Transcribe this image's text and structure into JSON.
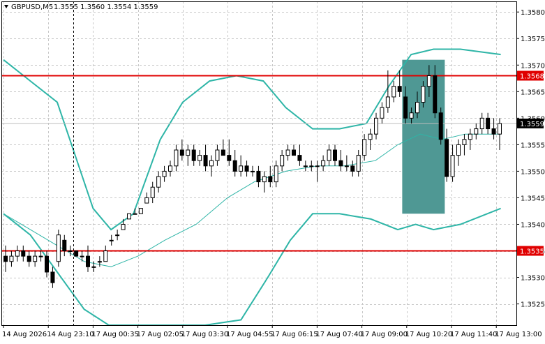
{
  "header": {
    "symbol": "GBPUSD,M5",
    "ohlc": "1.3555 1.3560 1.3554 1.3559"
  },
  "colors": {
    "background": "#ffffff",
    "grid": "#c8c8c8",
    "axis": "#000000",
    "bollinger": "#2eb5a7",
    "candle": "#000000",
    "level_line": "#e00000",
    "zone_fill": "#4f9894",
    "current_price_label_bg": "#000000",
    "level_label_bg": "#e00000"
  },
  "chart_data": {
    "type": "candlestick",
    "symbol": "GBPUSD",
    "timeframe": "M5",
    "y_ticks": [
      1.358,
      1.3575,
      1.357,
      1.3565,
      1.356,
      1.3555,
      1.355,
      1.3545,
      1.354,
      1.3535,
      1.353,
      1.3525
    ],
    "x_tick_labels": [
      "14 Aug 2026",
      "14 Aug 23:10",
      "17 Aug 00:35",
      "17 Aug 02:05",
      "17 Aug 03:30",
      "17 Aug 04:55",
      "17 Aug 06:15",
      "17 Aug 07:40",
      "17 Aug 09:00",
      "17 Aug 10:20",
      "17 Aug 11:40",
      "17 Aug 13:00"
    ],
    "ylim": [
      1.3521,
      1.3582
    ],
    "grid": true,
    "horizontal_levels": [
      {
        "price": 1.3568,
        "label": "1.3568"
      },
      {
        "price": 1.3535,
        "label": "1.3535"
      }
    ],
    "current_price": {
      "price": 1.3559,
      "label": "1.3559"
    },
    "zone": {
      "x_start_tick": 8.9,
      "x_end_tick": 9.85,
      "price_high": 1.3571,
      "price_low": 1.3542
    },
    "crosshair_x_tick": 1.55,
    "candles_approx": [
      [
        1.3534,
        1.3536,
        1.3531,
        1.3533
      ],
      [
        1.3533,
        1.3535,
        1.3532,
        1.3534
      ],
      [
        1.3534,
        1.3536,
        1.3533,
        1.3535
      ],
      [
        1.3535,
        1.3536,
        1.3533,
        1.3534
      ],
      [
        1.3534,
        1.3535,
        1.3532,
        1.3533
      ],
      [
        1.3533,
        1.3535,
        1.3532,
        1.3534
      ],
      [
        1.3534,
        1.3535,
        1.3533,
        1.3534
      ],
      [
        1.3534,
        1.3535,
        1.353,
        1.3531
      ],
      [
        1.3531,
        1.3532,
        1.3528,
        1.3529
      ],
      [
        1.3533,
        1.3539,
        1.3532,
        1.3538
      ],
      [
        1.3537,
        1.3538,
        1.3534,
        1.3535
      ],
      [
        1.3535,
        1.3536,
        1.3534,
        1.3535
      ],
      [
        1.3535,
        1.3535,
        1.3534,
        1.3534
      ],
      [
        1.3534,
        1.3535,
        1.3533,
        1.3534
      ],
      [
        1.3534,
        1.3536,
        1.3531,
        1.3532
      ],
      [
        1.3532,
        1.3533,
        1.3531,
        1.3532
      ],
      [
        1.3533,
        1.3534,
        1.3532,
        1.3533
      ],
      [
        1.3533,
        1.3536,
        1.3533,
        1.3535
      ],
      [
        1.3537,
        1.3538,
        1.3536,
        1.3537
      ],
      [
        1.3538,
        1.3539,
        1.3537,
        1.3538
      ],
      [
        1.3539,
        1.3541,
        1.3539,
        1.354
      ],
      [
        1.3541,
        1.3542,
        1.3541,
        1.3542
      ],
      [
        1.3542,
        1.3543,
        1.3542,
        1.3542
      ],
      [
        1.3542,
        1.3543,
        1.3542,
        1.3543
      ],
      [
        1.3544,
        1.3546,
        1.3544,
        1.3545
      ],
      [
        1.3545,
        1.3548,
        1.3544,
        1.3547
      ],
      [
        1.3547,
        1.355,
        1.3546,
        1.3549
      ],
      [
        1.3549,
        1.3551,
        1.3548,
        1.355
      ],
      [
        1.355,
        1.3552,
        1.3549,
        1.3551
      ],
      [
        1.3551,
        1.3555,
        1.355,
        1.3554
      ],
      [
        1.3554,
        1.3556,
        1.3552,
        1.3553
      ],
      [
        1.3553,
        1.3555,
        1.3551,
        1.3554
      ],
      [
        1.3554,
        1.3555,
        1.3551,
        1.3552
      ],
      [
        1.3552,
        1.3554,
        1.3551,
        1.3553
      ],
      [
        1.3553,
        1.3555,
        1.355,
        1.3551
      ],
      [
        1.3551,
        1.3553,
        1.3549,
        1.3552
      ],
      [
        1.3552,
        1.3555,
        1.3551,
        1.3554
      ],
      [
        1.3554,
        1.3556,
        1.3553,
        1.3553
      ],
      [
        1.3553,
        1.3556,
        1.3551,
        1.3552
      ],
      [
        1.3552,
        1.3554,
        1.3549,
        1.355
      ],
      [
        1.355,
        1.3553,
        1.3549,
        1.3551
      ],
      [
        1.3551,
        1.3552,
        1.3549,
        1.355
      ],
      [
        1.355,
        1.3551,
        1.3549,
        1.355
      ],
      [
        1.355,
        1.3551,
        1.3547,
        1.3548
      ],
      [
        1.3548,
        1.355,
        1.3546,
        1.3549
      ],
      [
        1.3549,
        1.3551,
        1.3547,
        1.3548
      ],
      [
        1.3548,
        1.3552,
        1.3547,
        1.3551
      ],
      [
        1.3551,
        1.3554,
        1.355,
        1.3553
      ],
      [
        1.3553,
        1.3555,
        1.3552,
        1.3554
      ],
      [
        1.3554,
        1.3555,
        1.3553,
        1.3553
      ],
      [
        1.3553,
        1.3555,
        1.3551,
        1.3552
      ],
      [
        1.3551,
        1.3552,
        1.355,
        1.3551
      ],
      [
        1.3551,
        1.3552,
        1.355,
        1.3551
      ],
      [
        1.3551,
        1.3552,
        1.3548,
        1.3551
      ],
      [
        1.3551,
        1.3553,
        1.355,
        1.3552
      ],
      [
        1.3552,
        1.3555,
        1.3551,
        1.3554
      ],
      [
        1.3554,
        1.3555,
        1.3551,
        1.3552
      ],
      [
        1.3552,
        1.3554,
        1.355,
        1.3551
      ],
      [
        1.3551,
        1.3553,
        1.355,
        1.3551
      ],
      [
        1.3551,
        1.3552,
        1.3549,
        1.355
      ],
      [
        1.355,
        1.3554,
        1.3549,
        1.3553
      ],
      [
        1.3553,
        1.3557,
        1.3552,
        1.3556
      ],
      [
        1.3556,
        1.3558,
        1.3554,
        1.3557
      ],
      [
        1.3557,
        1.3561,
        1.3556,
        1.356
      ],
      [
        1.356,
        1.3563,
        1.3559,
        1.3562
      ],
      [
        1.3562,
        1.3569,
        1.3561,
        1.3564
      ],
      [
        1.3564,
        1.3567,
        1.3563,
        1.3566
      ],
      [
        1.3566,
        1.3569,
        1.3564,
        1.3565
      ],
      [
        1.3564,
        1.3566,
        1.3559,
        1.356
      ],
      [
        1.356,
        1.3562,
        1.3559,
        1.3561
      ],
      [
        1.3561,
        1.3565,
        1.356,
        1.3563
      ],
      [
        1.3563,
        1.3567,
        1.3562,
        1.3566
      ],
      [
        1.3566,
        1.357,
        1.3564,
        1.3568
      ],
      [
        1.3568,
        1.357,
        1.356,
        1.3561
      ],
      [
        1.3561,
        1.3562,
        1.3555,
        1.3556
      ],
      [
        1.3556,
        1.3558,
        1.3548,
        1.3549
      ],
      [
        1.3549,
        1.3555,
        1.3548,
        1.3553
      ],
      [
        1.3553,
        1.3556,
        1.3551,
        1.3555
      ],
      [
        1.3555,
        1.3557,
        1.3553,
        1.3556
      ],
      [
        1.3556,
        1.3558,
        1.3554,
        1.3557
      ],
      [
        1.3557,
        1.3559,
        1.3556,
        1.3558
      ],
      [
        1.3558,
        1.3561,
        1.3557,
        1.356
      ],
      [
        1.356,
        1.3561,
        1.3557,
        1.3558
      ],
      [
        1.3558,
        1.356,
        1.3556,
        1.3557
      ],
      [
        1.3557,
        1.356,
        1.3554,
        1.3559
      ]
    ]
  }
}
